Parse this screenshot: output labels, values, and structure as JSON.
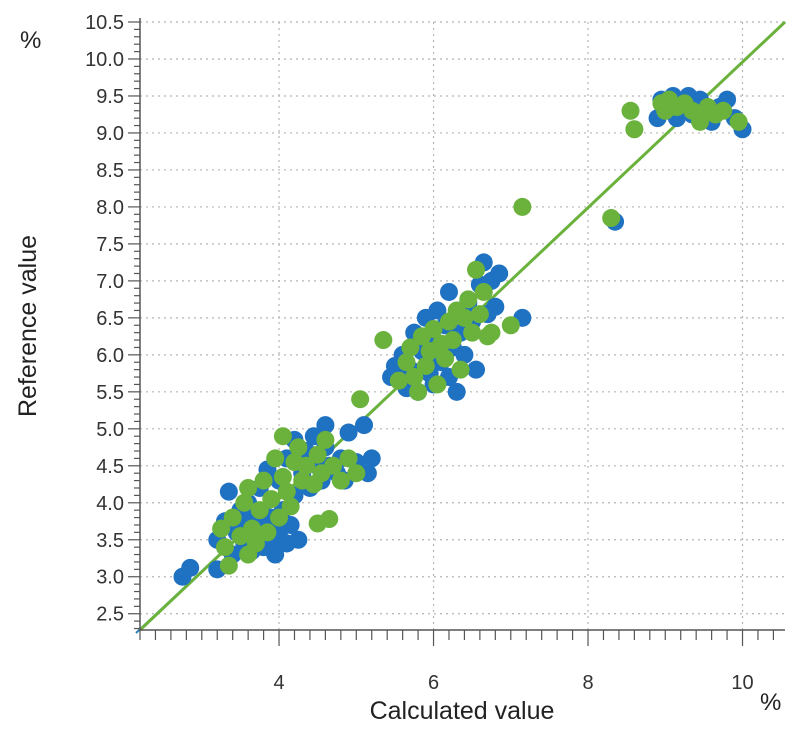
{
  "chart_data": {
    "type": "scatter",
    "title": "",
    "xlabel": "Calculated value",
    "ylabel": "Reference value",
    "x_unit": "%",
    "y_unit": "%",
    "xlim": [
      2.2,
      10.55
    ],
    "ylim": [
      2.28,
      10.5
    ],
    "x_ticks": [
      4,
      6,
      8,
      10
    ],
    "x_tick_labels": [
      "4",
      "6",
      "8",
      "10"
    ],
    "y_ticks": [
      2.5,
      3.0,
      3.5,
      4.0,
      4.5,
      5.0,
      5.5,
      6.0,
      6.5,
      7.0,
      7.5,
      8.0,
      8.5,
      9.0,
      9.5,
      10.0,
      10.5
    ],
    "y_tick_labels": [
      "2.5",
      "3.0",
      "3.5",
      "4.0",
      "4.5",
      "5.0",
      "5.5",
      "6.0",
      "6.5",
      "7.0",
      "7.5",
      "8.0",
      "8.5",
      "9.0",
      "9.5",
      "10.0",
      "10.5"
    ],
    "grid": true,
    "legend": "none",
    "regression_line": {
      "x": [
        2.2,
        10.55
      ],
      "y": [
        2.28,
        10.5
      ],
      "color": "#6ab23c"
    },
    "series": [
      {
        "color": "#1f72c1",
        "points": [
          [
            2.75,
            3.0
          ],
          [
            2.85,
            3.12
          ],
          [
            3.2,
            3.1
          ],
          [
            3.2,
            3.5
          ],
          [
            3.3,
            3.75
          ],
          [
            3.35,
            4.15
          ],
          [
            3.4,
            3.3
          ],
          [
            3.45,
            3.6
          ],
          [
            3.5,
            3.9
          ],
          [
            3.55,
            3.45
          ],
          [
            3.6,
            3.7
          ],
          [
            3.6,
            4.0
          ],
          [
            3.65,
            3.35
          ],
          [
            3.7,
            3.55
          ],
          [
            3.7,
            3.85
          ],
          [
            3.75,
            4.2
          ],
          [
            3.8,
            3.4
          ],
          [
            3.8,
            3.65
          ],
          [
            3.85,
            4.45
          ],
          [
            3.9,
            3.5
          ],
          [
            3.9,
            3.8
          ],
          [
            3.95,
            3.3
          ],
          [
            4.0,
            3.6
          ],
          [
            4.0,
            4.3
          ],
          [
            4.05,
            3.9
          ],
          [
            4.1,
            3.45
          ],
          [
            4.1,
            4.6
          ],
          [
            4.15,
            3.7
          ],
          [
            4.2,
            4.1
          ],
          [
            4.2,
            4.85
          ],
          [
            4.25,
            3.5
          ],
          [
            4.3,
            4.4
          ],
          [
            4.35,
            4.7
          ],
          [
            4.4,
            4.2
          ],
          [
            4.45,
            4.9
          ],
          [
            4.5,
            4.5
          ],
          [
            4.55,
            4.3
          ],
          [
            4.6,
            4.75
          ],
          [
            4.6,
            5.05
          ],
          [
            4.65,
            4.5
          ],
          [
            4.75,
            4.4
          ],
          [
            4.8,
            4.6
          ],
          [
            4.85,
            4.3
          ],
          [
            4.9,
            4.95
          ],
          [
            5.0,
            4.55
          ],
          [
            5.1,
            5.05
          ],
          [
            5.15,
            4.4
          ],
          [
            5.2,
            4.6
          ],
          [
            5.45,
            5.7
          ],
          [
            5.5,
            5.85
          ],
          [
            5.6,
            6.0
          ],
          [
            5.65,
            5.55
          ],
          [
            5.7,
            5.8
          ],
          [
            5.75,
            6.3
          ],
          [
            5.8,
            5.5
          ],
          [
            5.85,
            6.05
          ],
          [
            5.9,
            6.5
          ],
          [
            5.95,
            5.75
          ],
          [
            6.0,
            5.6
          ],
          [
            6.0,
            6.2
          ],
          [
            6.05,
            6.6
          ],
          [
            6.1,
            5.9
          ],
          [
            6.15,
            6.4
          ],
          [
            6.2,
            5.7
          ],
          [
            6.2,
            6.85
          ],
          [
            6.25,
            6.1
          ],
          [
            6.3,
            5.5
          ],
          [
            6.3,
            6.55
          ],
          [
            6.35,
            6.3
          ],
          [
            6.4,
            6.0
          ],
          [
            6.45,
            6.7
          ],
          [
            6.5,
            6.45
          ],
          [
            6.55,
            5.8
          ],
          [
            6.6,
            6.95
          ],
          [
            6.65,
            7.25
          ],
          [
            6.7,
            6.55
          ],
          [
            6.75,
            7.0
          ],
          [
            6.8,
            6.65
          ],
          [
            6.85,
            7.1
          ],
          [
            7.15,
            6.5
          ],
          [
            8.35,
            7.8
          ],
          [
            8.9,
            9.2
          ],
          [
            8.95,
            9.45
          ],
          [
            9.05,
            9.3
          ],
          [
            9.1,
            9.5
          ],
          [
            9.15,
            9.2
          ],
          [
            9.25,
            9.4
          ],
          [
            9.3,
            9.5
          ],
          [
            9.35,
            9.25
          ],
          [
            9.45,
            9.45
          ],
          [
            9.5,
            9.3
          ],
          [
            9.6,
            9.15
          ],
          [
            9.7,
            9.35
          ],
          [
            9.8,
            9.45
          ],
          [
            9.9,
            9.2
          ],
          [
            10.0,
            9.05
          ]
        ]
      },
      {
        "color": "#6ab23c",
        "points": [
          [
            3.25,
            3.65
          ],
          [
            3.3,
            3.4
          ],
          [
            3.35,
            3.15
          ],
          [
            3.4,
            3.8
          ],
          [
            3.5,
            3.55
          ],
          [
            3.55,
            4.0
          ],
          [
            3.6,
            3.3
          ],
          [
            3.6,
            4.2
          ],
          [
            3.65,
            3.65
          ],
          [
            3.7,
            3.45
          ],
          [
            3.75,
            3.9
          ],
          [
            3.8,
            4.3
          ],
          [
            3.85,
            3.6
          ],
          [
            3.9,
            4.05
          ],
          [
            3.95,
            4.6
          ],
          [
            4.0,
            3.8
          ],
          [
            4.05,
            4.35
          ],
          [
            4.05,
            4.9
          ],
          [
            4.1,
            4.15
          ],
          [
            4.15,
            3.95
          ],
          [
            4.2,
            4.55
          ],
          [
            4.25,
            4.75
          ],
          [
            4.3,
            4.3
          ],
          [
            4.35,
            4.5
          ],
          [
            4.45,
            4.25
          ],
          [
            4.5,
            4.65
          ],
          [
            4.55,
            4.4
          ],
          [
            4.6,
            4.85
          ],
          [
            4.7,
            4.5
          ],
          [
            4.8,
            4.3
          ],
          [
            4.9,
            4.6
          ],
          [
            4.5,
            3.72
          ],
          [
            4.65,
            3.78
          ],
          [
            5.0,
            4.4
          ],
          [
            5.05,
            5.4
          ],
          [
            5.35,
            6.2
          ],
          [
            5.55,
            5.65
          ],
          [
            5.65,
            5.9
          ],
          [
            5.7,
            6.1
          ],
          [
            5.75,
            5.7
          ],
          [
            5.8,
            5.5
          ],
          [
            5.85,
            6.25
          ],
          [
            5.9,
            5.85
          ],
          [
            5.95,
            6.05
          ],
          [
            6.0,
            6.35
          ],
          [
            6.05,
            5.6
          ],
          [
            6.1,
            6.15
          ],
          [
            6.15,
            5.95
          ],
          [
            6.2,
            6.45
          ],
          [
            6.25,
            6.2
          ],
          [
            6.3,
            6.6
          ],
          [
            6.35,
            5.8
          ],
          [
            6.4,
            6.5
          ],
          [
            6.45,
            6.75
          ],
          [
            6.5,
            6.3
          ],
          [
            6.55,
            7.15
          ],
          [
            6.6,
            6.55
          ],
          [
            6.65,
            6.85
          ],
          [
            6.7,
            6.25
          ],
          [
            6.75,
            6.3
          ],
          [
            7.0,
            6.4
          ],
          [
            7.15,
            8.0
          ],
          [
            8.3,
            7.85
          ],
          [
            8.55,
            9.3
          ],
          [
            8.6,
            9.05
          ],
          [
            8.95,
            9.4
          ],
          [
            9.0,
            9.3
          ],
          [
            9.05,
            9.45
          ],
          [
            9.15,
            9.35
          ],
          [
            9.25,
            9.4
          ],
          [
            9.35,
            9.3
          ],
          [
            9.45,
            9.15
          ],
          [
            9.55,
            9.35
          ],
          [
            9.65,
            9.25
          ],
          [
            9.75,
            9.3
          ],
          [
            9.95,
            9.15
          ]
        ]
      }
    ]
  }
}
